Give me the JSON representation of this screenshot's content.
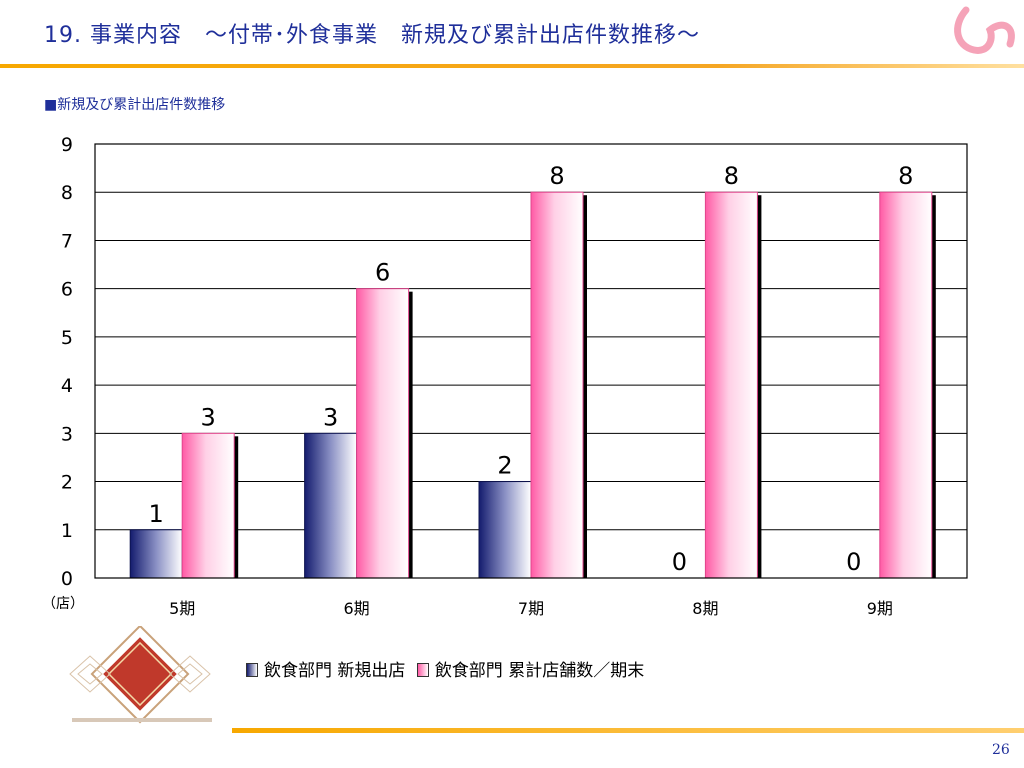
{
  "slide": {
    "title": "19. 事業内容　～付帯･外食事業　新規及び累計出店件数推移～",
    "caption": "■新規及び累計出店件数推移",
    "page_number": "26"
  },
  "colors": {
    "title": "#1f2f9a",
    "accent_rule": "#f7a800",
    "series_new": "#1a2a80",
    "series_cumulative": "#ff6fae"
  },
  "chart_data": {
    "type": "bar",
    "unit_label": "（店）",
    "categories": [
      "5期",
      "6期",
      "7期",
      "8期",
      "9期"
    ],
    "series": [
      {
        "name": "飲食部門 新規出店",
        "values": [
          1,
          3,
          2,
          0,
          0
        ]
      },
      {
        "name": "飲食部門 累計店舗数／期末",
        "values": [
          3,
          6,
          8,
          8,
          8
        ]
      }
    ],
    "ylim": [
      0,
      9
    ],
    "yticks": [
      "0",
      "1",
      "2",
      "3",
      "4",
      "5",
      "6",
      "7",
      "8",
      "9"
    ],
    "grid": true,
    "legend_position": "bottom"
  }
}
